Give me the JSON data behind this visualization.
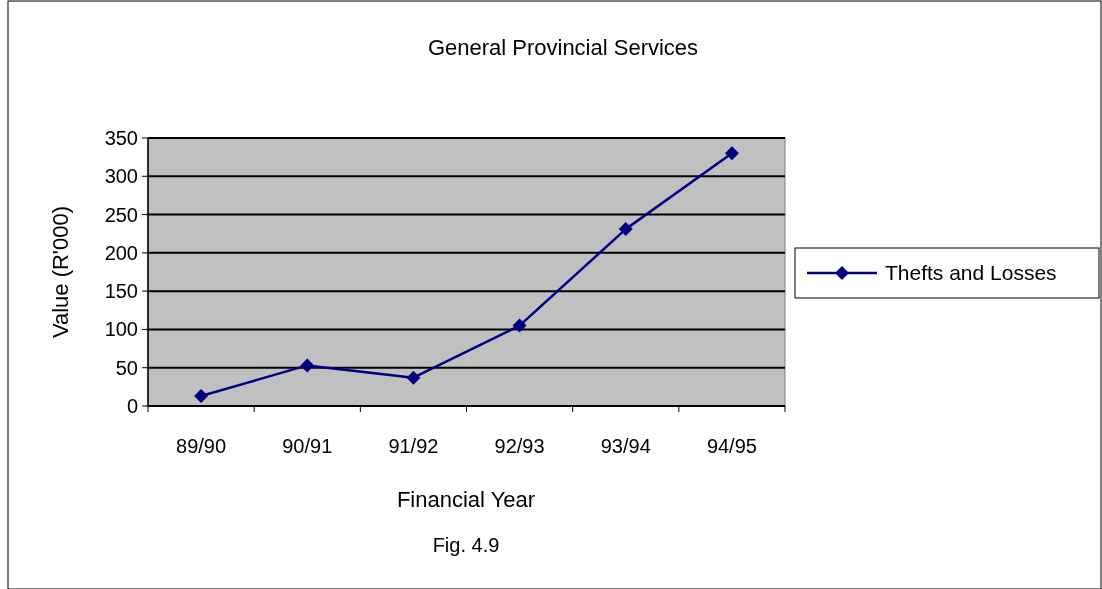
{
  "chart_data": {
    "type": "line",
    "title": "General Provincial Services",
    "xlabel": "Financial Year",
    "ylabel": "Value  (R'000)",
    "annotations": [
      "Fig. 4.9"
    ],
    "categories": [
      "89/90",
      "90/91",
      "91/92",
      "92/93",
      "93/94",
      "94/95"
    ],
    "series": [
      {
        "name": "Thefts and Losses",
        "color": "#000080",
        "values": [
          13,
          53,
          37,
          105,
          231,
          330
        ]
      }
    ],
    "ylim": [
      0,
      350
    ],
    "yticks": [
      0,
      50,
      100,
      150,
      200,
      250,
      300,
      350
    ],
    "grid": "y",
    "legend": "right",
    "marker": "diamond",
    "line_style": "solid"
  }
}
